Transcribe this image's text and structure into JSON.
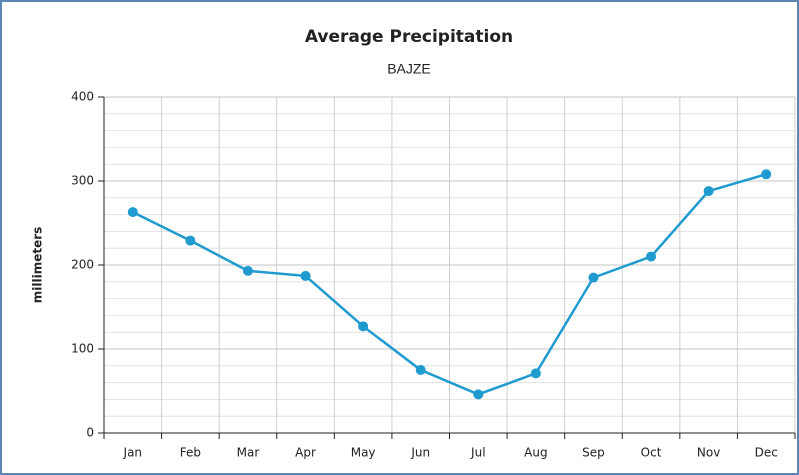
{
  "chart_data": {
    "type": "line",
    "title": "Average Precipitation",
    "subtitle": "BAJZE",
    "y_label": "millimeters",
    "categories": [
      "Jan",
      "Feb",
      "Mar",
      "Apr",
      "May",
      "Jun",
      "Jul",
      "Aug",
      "Sep",
      "Oct",
      "Nov",
      "Dec"
    ],
    "series": [
      {
        "name": "Precipitation",
        "color": "#1f9bcf",
        "values": [
          263,
          229,
          193,
          187,
          127,
          75,
          46,
          71,
          185,
          210,
          288,
          308
        ]
      }
    ],
    "ylim": [
      0,
      400
    ],
    "yticks": [
      0,
      100,
      200,
      300,
      400
    ],
    "grid": true
  }
}
